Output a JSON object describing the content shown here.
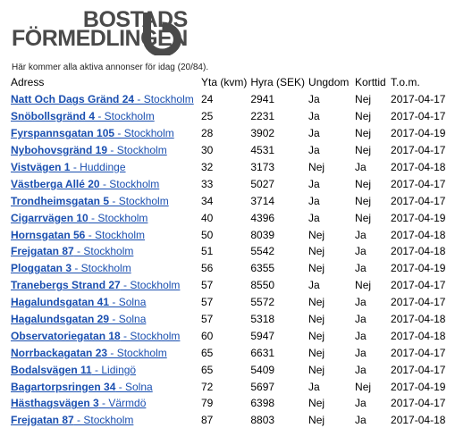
{
  "logo": {
    "line1": "BOSTADS",
    "line2": "FÖRMEDLINGEN"
  },
  "intro": "Här kommer alla aktiva annonser för idag (20/84).",
  "columns": [
    "Adress",
    "Yta (kvm)",
    "Hyra (SEK)",
    "Ungdom",
    "Korttid",
    "T.o.m."
  ],
  "rows": [
    {
      "street": "Natt Och Dags Gränd 24",
      "city": " - Stockholm",
      "yta": "24",
      "hyra": "2941",
      "ungdom": "Ja",
      "korttid": "Nej",
      "tom": "2017-04-17"
    },
    {
      "street": "Snöbollsgränd 4",
      "city": " - Stockholm",
      "yta": "25",
      "hyra": "2231",
      "ungdom": "Ja",
      "korttid": "Nej",
      "tom": "2017-04-17"
    },
    {
      "street": "Fyrspannsgatan 105",
      "city": " - Stockholm",
      "yta": "28",
      "hyra": "3902",
      "ungdom": "Ja",
      "korttid": "Nej",
      "tom": "2017-04-19"
    },
    {
      "street": "Nybohovsgränd 19",
      "city": " - Stockholm",
      "yta": "30",
      "hyra": "4531",
      "ungdom": "Ja",
      "korttid": "Nej",
      "tom": "2017-04-17"
    },
    {
      "street": "Vistvägen 1",
      "city": " - Huddinge",
      "yta": "32",
      "hyra": "3173",
      "ungdom": "Nej",
      "korttid": "Ja",
      "tom": "2017-04-18"
    },
    {
      "street": "Västberga Allé 20",
      "city": " - Stockholm",
      "yta": "33",
      "hyra": "5027",
      "ungdom": "Ja",
      "korttid": "Nej",
      "tom": "2017-04-17"
    },
    {
      "street": "Trondheimsgatan 5",
      "city": " - Stockholm",
      "yta": "34",
      "hyra": "3714",
      "ungdom": "Ja",
      "korttid": "Nej",
      "tom": "2017-04-17"
    },
    {
      "street": "Cigarrvägen 10",
      "city": " - Stockholm",
      "yta": "40",
      "hyra": "4396",
      "ungdom": "Ja",
      "korttid": "Nej",
      "tom": "2017-04-19"
    },
    {
      "street": "Hornsgatan 56",
      "city": " - Stockholm",
      "yta": "50",
      "hyra": "8039",
      "ungdom": "Nej",
      "korttid": "Ja",
      "tom": "2017-04-18"
    },
    {
      "street": "Frejgatan 87",
      "city": " - Stockholm",
      "yta": "51",
      "hyra": "5542",
      "ungdom": "Nej",
      "korttid": "Ja",
      "tom": "2017-04-18"
    },
    {
      "street": "Ploggatan 3",
      "city": " - Stockholm",
      "yta": "56",
      "hyra": "6355",
      "ungdom": "Nej",
      "korttid": "Ja",
      "tom": "2017-04-19"
    },
    {
      "street": "Tranebergs Strand 27",
      "city": " - Stockholm",
      "yta": "57",
      "hyra": "8550",
      "ungdom": "Ja",
      "korttid": "Nej",
      "tom": "2017-04-17"
    },
    {
      "street": "Hagalundsgatan 41",
      "city": " - Solna",
      "yta": "57",
      "hyra": "5572",
      "ungdom": "Nej",
      "korttid": "Ja",
      "tom": "2017-04-17"
    },
    {
      "street": "Hagalundsgatan 29",
      "city": " - Solna",
      "yta": "57",
      "hyra": "5318",
      "ungdom": "Nej",
      "korttid": "Ja",
      "tom": "2017-04-18"
    },
    {
      "street": "Observatoriegatan 18",
      "city": " - Stockholm",
      "yta": "60",
      "hyra": "5947",
      "ungdom": "Nej",
      "korttid": "Ja",
      "tom": "2017-04-18"
    },
    {
      "street": "Norrbackagatan 23",
      "city": " - Stockholm",
      "yta": "65",
      "hyra": "6631",
      "ungdom": "Nej",
      "korttid": "Ja",
      "tom": "2017-04-17"
    },
    {
      "street": "Bodalsvägen 11",
      "city": " - Lidingö",
      "yta": "65",
      "hyra": "5409",
      "ungdom": "Nej",
      "korttid": "Ja",
      "tom": "2017-04-17"
    },
    {
      "street": "Bagartorpsringen 34",
      "city": " - Solna",
      "yta": "72",
      "hyra": "5697",
      "ungdom": "Ja",
      "korttid": "Nej",
      "tom": "2017-04-19"
    },
    {
      "street": "Hästhagsvägen 3",
      "city": " - Värmdö",
      "yta": "79",
      "hyra": "6398",
      "ungdom": "Nej",
      "korttid": "Ja",
      "tom": "2017-04-17"
    },
    {
      "street": "Frejgatan 87",
      "city": " - Stockholm",
      "yta": "87",
      "hyra": "8803",
      "ungdom": "Nej",
      "korttid": "Ja",
      "tom": "2017-04-18"
    }
  ]
}
